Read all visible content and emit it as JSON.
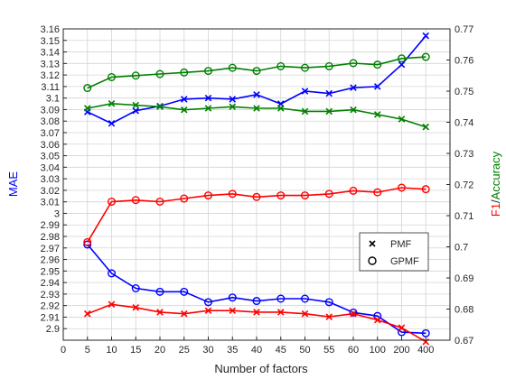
{
  "chart_data": {
    "type": "line",
    "xlabel": "Number of factors",
    "categories": [
      "5",
      "10",
      "15",
      "20",
      "25",
      "30",
      "35",
      "40",
      "45",
      "50",
      "55",
      "60",
      "100",
      "200",
      "400"
    ],
    "y_left": {
      "label": "MAE",
      "color": "#0000ff",
      "ylim": [
        2.89,
        3.16
      ],
      "ticks": [
        "2.9",
        "2.91",
        "2.92",
        "2.93",
        "2.94",
        "2.95",
        "2.96",
        "2.97",
        "2.98",
        "2.99",
        "3",
        "3.01",
        "3.02",
        "3.03",
        "3.04",
        "3.05",
        "3.06",
        "3.07",
        "3.08",
        "3.09",
        "3.1",
        "3.11",
        "3.12",
        "3.13",
        "3.14",
        "3.15",
        "3.16"
      ]
    },
    "y_right": {
      "label_part1": "F1",
      "label_sep": "/",
      "label_part2": "Accuracy",
      "color_part1": "#ff0000",
      "color_part2": "#008000",
      "ylim": [
        0.67,
        0.77
      ],
      "ticks": [
        "0.67",
        "0.68",
        "0.69",
        "0.7",
        "0.71",
        "0.72",
        "0.73",
        "0.74",
        "0.75",
        "0.76",
        "0.77"
      ]
    },
    "series": [
      {
        "metric": "MAE",
        "model": "PMF",
        "axis": "left",
        "color": "#0000ff",
        "marker": "x",
        "values": [
          3.088,
          3.078,
          3.089,
          3.093,
          3.099,
          3.1,
          3.099,
          3.103,
          3.095,
          3.106,
          3.104,
          3.109,
          3.11,
          3.129,
          3.154
        ]
      },
      {
        "metric": "MAE",
        "model": "GPMF",
        "axis": "left",
        "color": "#0000ff",
        "marker": "o",
        "values": [
          2.973,
          2.948,
          2.935,
          2.932,
          2.932,
          2.923,
          2.927,
          2.924,
          2.926,
          2.926,
          2.923,
          2.914,
          2.911,
          2.897,
          2.896
        ]
      },
      {
        "metric": "Accuracy",
        "model": "PMF",
        "axis": "right",
        "color": "#008000",
        "marker": "x",
        "values": [
          0.7445,
          0.746,
          0.7455,
          0.745,
          0.744,
          0.7445,
          0.745,
          0.7445,
          0.7445,
          0.7435,
          0.7435,
          0.744,
          0.7425,
          0.741,
          0.7385
        ]
      },
      {
        "metric": "Accuracy",
        "model": "GPMF",
        "axis": "right",
        "color": "#008000",
        "marker": "o",
        "values": [
          0.751,
          0.7545,
          0.755,
          0.7555,
          0.756,
          0.7565,
          0.7575,
          0.7565,
          0.758,
          0.7575,
          0.758,
          0.759,
          0.7585,
          0.7605,
          0.761
        ]
      },
      {
        "metric": "F1",
        "model": "PMF",
        "axis": "right",
        "color": "#ff0000",
        "marker": "x",
        "values": [
          0.6785,
          0.6815,
          0.6805,
          0.679,
          0.6785,
          0.6795,
          0.6795,
          0.679,
          0.679,
          0.6785,
          0.6775,
          0.6785,
          0.6765,
          0.674,
          0.6695
        ]
      },
      {
        "metric": "F1",
        "model": "GPMF",
        "axis": "right",
        "color": "#ff0000",
        "marker": "o",
        "values": [
          0.7015,
          0.7145,
          0.715,
          0.7145,
          0.7155,
          0.7165,
          0.717,
          0.716,
          0.7165,
          0.7165,
          0.717,
          0.718,
          0.7175,
          0.719,
          0.7185
        ]
      }
    ],
    "legend": {
      "placement": "right-center",
      "items": [
        {
          "marker": "x",
          "label": "PMF"
        },
        {
          "marker": "o",
          "label": "GPMF"
        }
      ]
    },
    "grid": true
  }
}
